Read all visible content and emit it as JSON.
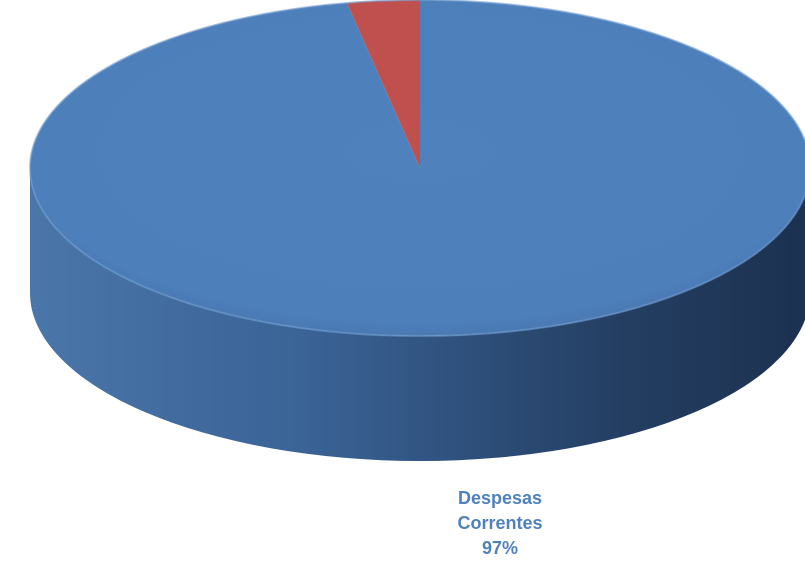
{
  "chart_data": {
    "type": "pie",
    "style": "3d",
    "categories": [
      "Despesas Correntes",
      ""
    ],
    "values": [
      97,
      3
    ],
    "colors": [
      "#4f81bd",
      "#c0504d"
    ],
    "data_labels": [
      {
        "lines": [
          "Despesas",
          "Correntes",
          "97%"
        ],
        "color": "#4f81bd"
      }
    ],
    "title": "",
    "legend": "none"
  }
}
